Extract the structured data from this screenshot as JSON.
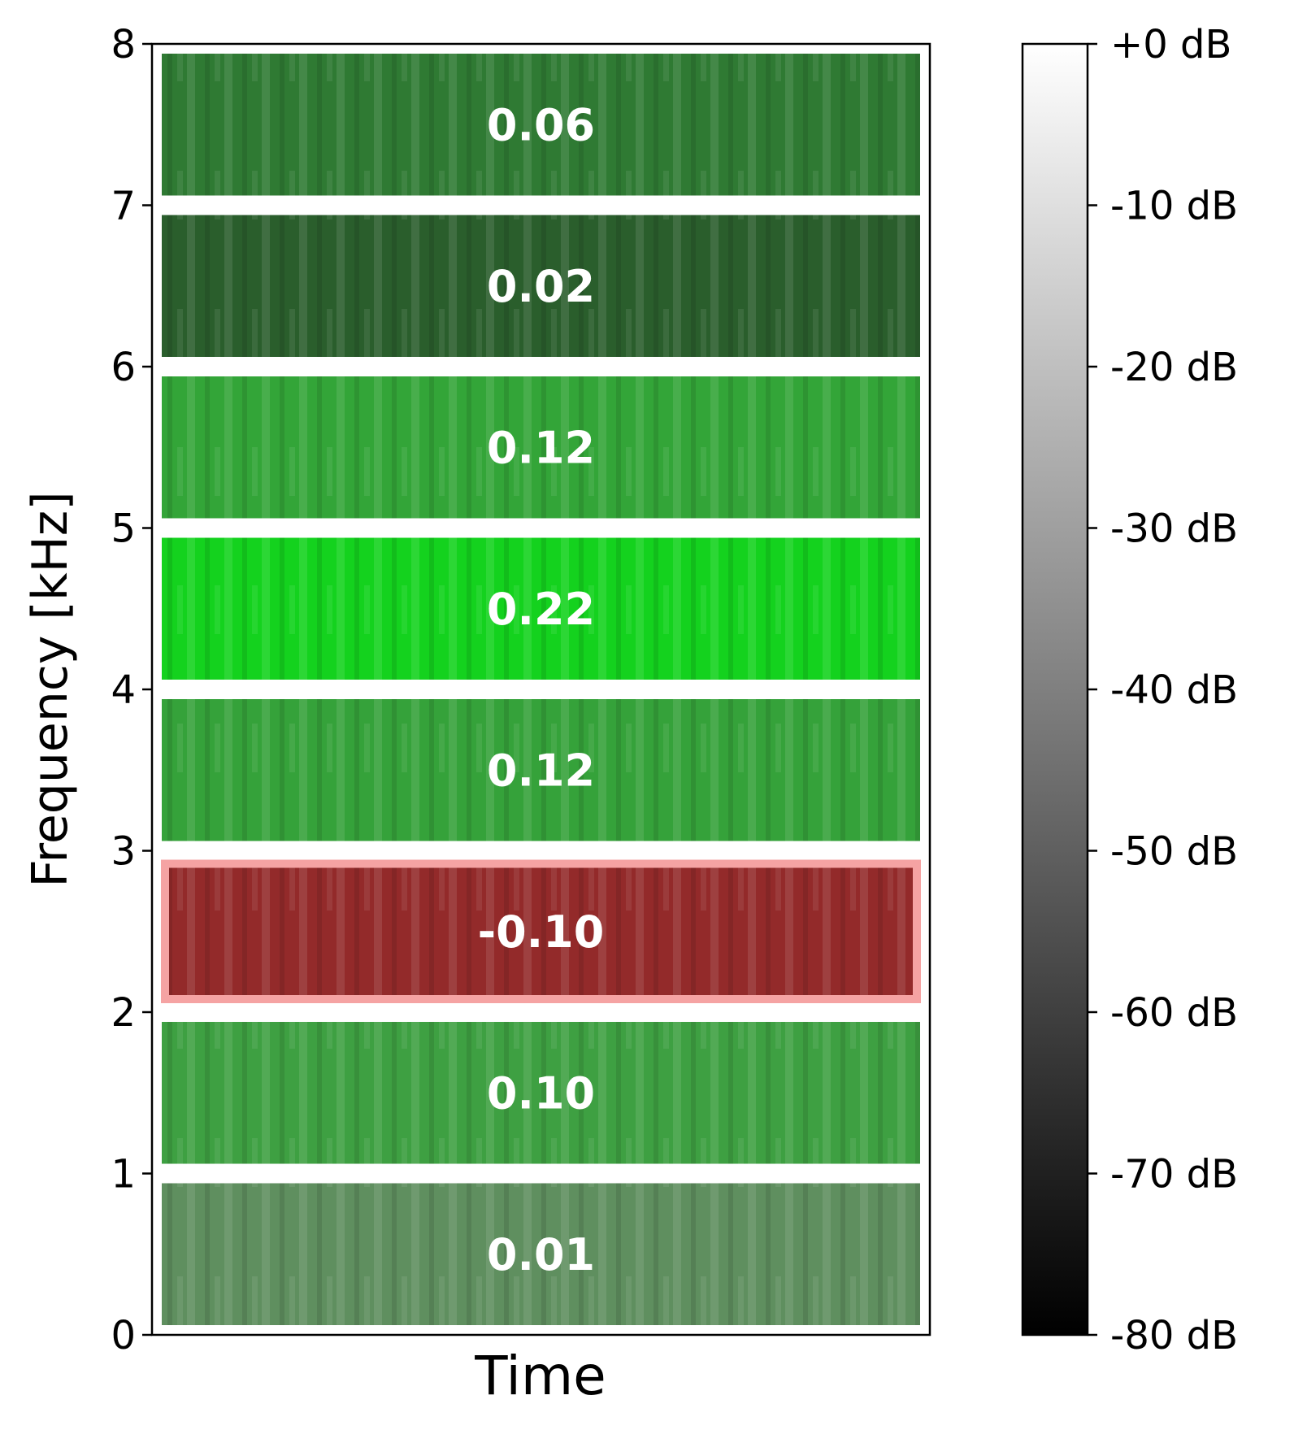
{
  "chart_data": {
    "type": "heatmap",
    "xlabel": "Time",
    "ylabel": "Frequency [kHz]",
    "ylim": [
      0,
      8
    ],
    "yticks": [
      "0",
      "1",
      "2",
      "3",
      "4",
      "5",
      "6",
      "7",
      "8"
    ],
    "bands": [
      {
        "low_khz": 0,
        "high_khz": 1,
        "score": "0.01",
        "value": 0.01,
        "color": "#5f8f5f",
        "highlighted": false
      },
      {
        "low_khz": 1,
        "high_khz": 2,
        "score": "0.10",
        "value": 0.1,
        "color": "#3ea042",
        "highlighted": false
      },
      {
        "low_khz": 2,
        "high_khz": 3,
        "score": "-0.10",
        "value": -0.1,
        "color": "#932a2a",
        "highlighted": true
      },
      {
        "low_khz": 3,
        "high_khz": 4,
        "score": "0.12",
        "value": 0.12,
        "color": "#35a23a",
        "highlighted": false
      },
      {
        "low_khz": 4,
        "high_khz": 5,
        "score": "0.22",
        "value": 0.22,
        "color": "#14d21e",
        "highlighted": false
      },
      {
        "low_khz": 5,
        "high_khz": 6,
        "score": "0.12",
        "value": 0.12,
        "color": "#33a538",
        "highlighted": false
      },
      {
        "low_khz": 6,
        "high_khz": 7,
        "score": "0.02",
        "value": 0.02,
        "color": "#2a5e2c",
        "highlighted": false
      },
      {
        "low_khz": 7,
        "high_khz": 8,
        "score": "0.06",
        "value": 0.06,
        "color": "#2f7a33",
        "highlighted": false
      }
    ],
    "colorbar": {
      "range_db": [
        -80,
        0
      ],
      "ticks": [
        "+0 dB",
        "-10 dB",
        "-20 dB",
        "-30 dB",
        "-40 dB",
        "-50 dB",
        "-60 dB",
        "-70 dB",
        "-80 dB"
      ],
      "cmap": "gray"
    },
    "highlight_color": "#f5a3a3",
    "grid": false
  }
}
